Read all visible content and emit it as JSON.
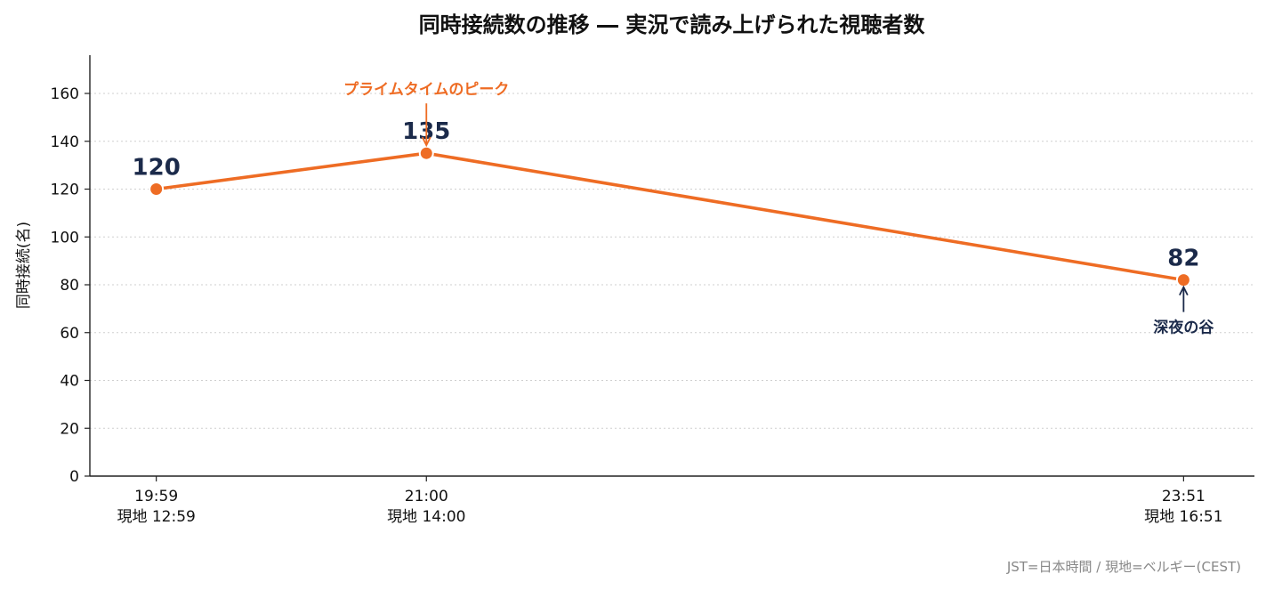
{
  "chart_data": {
    "type": "line",
    "title": "同時接続数の推移 ― 実況で読み上げられた視聴者数",
    "xlabel": "",
    "ylabel": "同時接続(名)",
    "categories": [
      {
        "time": "19:59",
        "local": "現地 12:59"
      },
      {
        "time": "21:00",
        "local": "現地 14:00"
      },
      {
        "time": "23:51",
        "local": "現地 16:51"
      }
    ],
    "x_minutes": [
      "19:59",
      "21:00",
      "23:51"
    ],
    "xlim": [
      "19:44",
      "24:07"
    ],
    "series": [
      {
        "values": [
          120,
          135,
          82
        ]
      }
    ],
    "data_labels": [
      "120",
      "135",
      "82"
    ],
    "ylim": [
      0,
      176
    ],
    "yticks": [
      0,
      20,
      40,
      60,
      80,
      100,
      120,
      140,
      160
    ],
    "grid": true,
    "annotations": [
      {
        "text": "プライムタイムのピーク",
        "point": 1,
        "position": "above"
      },
      {
        "text": "深夜の谷",
        "point": 2,
        "position": "below"
      }
    ],
    "colors": {
      "line": "#EE6C24",
      "label": "#1B2A4A",
      "peak_annotation": "#EE6C24",
      "trough_annotation": "#1B2A4A"
    }
  },
  "footnote": "JST=日本時間 / 現地=ベルギー(CEST)"
}
